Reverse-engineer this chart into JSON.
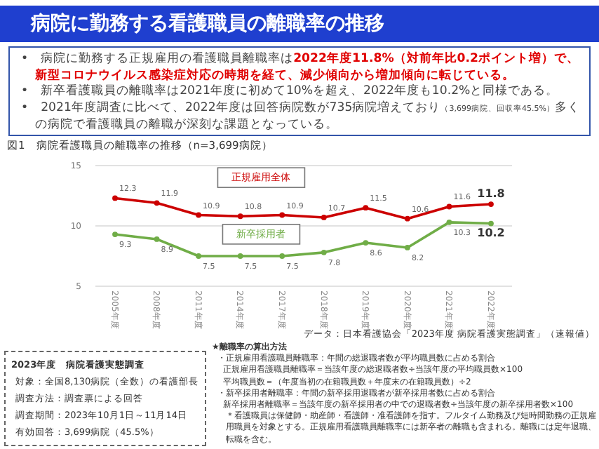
{
  "chart_data": {
    "type": "line",
    "title": "病院に勤務する看護職員の離職率の推移",
    "subtitle": "図1　病院看護職員の離職率の推移（n=3,699病院）",
    "categories": [
      "2005年度",
      "2008年度",
      "2011年度",
      "2014年度",
      "2017年度",
      "2018年度",
      "2019年度",
      "2020年度",
      "2021年度",
      "2022年度"
    ],
    "series": [
      {
        "name": "正規雇用全体",
        "color": "#cc0000",
        "values": [
          12.3,
          11.9,
          10.9,
          10.8,
          10.9,
          10.7,
          11.5,
          10.6,
          11.6,
          11.8
        ]
      },
      {
        "name": "新卒採用者",
        "color": "#70ad47",
        "values": [
          9.3,
          8.9,
          7.5,
          7.5,
          7.5,
          7.8,
          8.6,
          8.2,
          10.3,
          10.2
        ]
      }
    ],
    "ylim": [
      5,
      15
    ],
    "yticks": [
      5,
      10,
      15
    ],
    "grid": "y",
    "marker": "circle",
    "line_style": "solid",
    "data_labels": true,
    "annotations": [
      "•　病院に勤務する正規雇用の看護職員離職率は",
      "2022年度11.8%（対前年比0.2ポイント増）で、新型コロナウイルス感染症対応の時期を経て、減少傾向から増加傾向に転じている。",
      "•　新卒看護職員の離職率は2021年度に初めて10%を超え、2022年度も10.2%と同様である。",
      "•　2021年度調査に比べて、2022年度は回答病院数が735病院増えており",
      "（3,699病院、回収率45.5%）",
      "多くの病院で看護職員の離職が深刻な課題となっている。",
      "データ：日本看護協会「2023年度 病院看護実態調査」（速報値）",
      "2023年度　病院看護実態調査",
      "対象：全国8,130病院（全数）の看護部長",
      "調査方法：調査票による回答",
      "調査期間：2023年10月1日～11月14日",
      "有効回答：3,699病院（45.5%）",
      "★離職率の算出方法",
      "・正規雇用看護職員離職率：年間の総退職者数が平均職員数に占める割合",
      "正規雇用看護職員離職率＝当該年度の総退職者数÷当該年度の平均職員数×100",
      "平均職員数＝（年度当初の在籍職員数＋年度末の在籍職員数）÷2",
      "・新卒採用者離職率：年間の新卒採用退職者が新卒採用者数に占める割合",
      "新卒採用者離職率＝当該年度の新卒採用者の中での退職者数÷当該年度の新卒採用者数×100",
      "＊看護職員は保健師・助産師・看護師・准看護師を指す。フルタイム勤務及び短時間勤務の正規雇用職員を対象とする。正規雇用看護職員離職率には新卒者の離職も含まれる。離職には定年退職、転職を含む。"
    ]
  }
}
